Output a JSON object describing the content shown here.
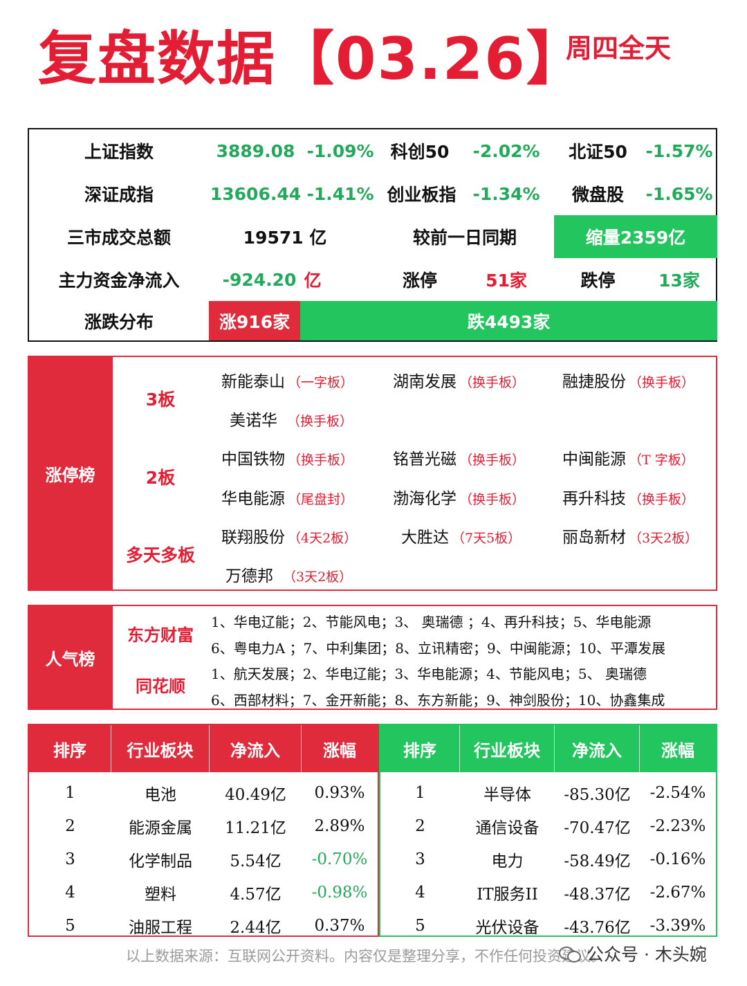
{
  "header": {
    "title": "复盘数据【03.26】",
    "subtitle": "周四全天"
  },
  "indices": {
    "shanghai": {
      "name": "上证指数",
      "value": "3889.08",
      "change": "-1.09%"
    },
    "kechuang": {
      "name": "科创50",
      "change": "-2.02%"
    },
    "beizheng": {
      "name": "北证50",
      "change": "-1.57%"
    },
    "shenzhen": {
      "name": "深证成指",
      "value": "13606.44",
      "change": "-1.41%"
    },
    "chuangye": {
      "name": "创业板指",
      "change": "-1.34%"
    },
    "weipan": {
      "name": "微盘股",
      "change": "-1.65%"
    },
    "turnover": {
      "label": "三市成交总额",
      "value": "19571 亿",
      "compare_label": "较前一日同期",
      "compare_value": "缩量2359亿"
    },
    "mainflow": {
      "label": "主力资金净流入",
      "value": "-924.20",
      "unit": "亿",
      "limit_up_label": "涨停",
      "limit_up_value": "51家",
      "limit_down_label": "跌停",
      "limit_down_value": "13家"
    },
    "distribution": {
      "label": "涨跌分布",
      "up": "涨916家",
      "down": "跌4493家",
      "up_count": 916,
      "down_count": 4493
    }
  },
  "limit_up": {
    "title": "涨停榜",
    "levels": [
      {
        "label": "3板",
        "rows": [
          [
            {
              "name": "新能泰山",
              "tag": "（一字板）"
            },
            {
              "name": "湖南发展",
              "tag": "（换手板）"
            },
            {
              "name": "融捷股份",
              "tag": "（换手板）"
            }
          ],
          [
            {
              "name": "美诺华",
              "tag": "（换手板）"
            }
          ]
        ]
      },
      {
        "label": "2板",
        "rows": [
          [
            {
              "name": "中国铁物",
              "tag": "（换手板）"
            },
            {
              "name": "铭普光磁",
              "tag": "（换手板）"
            },
            {
              "name": "中闽能源",
              "tag": "（T 字板）"
            }
          ],
          [
            {
              "name": "华电能源",
              "tag": "（尾盘封）"
            },
            {
              "name": "渤海化学",
              "tag": "（换手板）"
            },
            {
              "name": "再升科技",
              "tag": "（换手板）"
            }
          ]
        ]
      },
      {
        "label": "多天多板",
        "rows": [
          [
            {
              "name": "联翔股份",
              "tag": "（4天2板）"
            },
            {
              "name": "大胜达",
              "tag": "（7天5板）"
            },
            {
              "name": "丽岛新材",
              "tag": "（3天2板）"
            }
          ],
          [
            {
              "name": "万德邦",
              "tag": "（3天2板）"
            }
          ]
        ]
      }
    ]
  },
  "popularity": {
    "title": "人气榜",
    "sources": [
      {
        "label": "东方财富",
        "lines": [
          "1、华电辽能；2、节能风电；3、 奥瑞德 ；4、再升科技；5、华电能源",
          "6、粤电力A ；7、中利集团；8、立讯精密；9、中闽能源；10、平潭发展"
        ]
      },
      {
        "label": "同花顺",
        "lines": [
          "1、航天发展；2、华电辽能；3、华电能源；4、节能风电；5、 奥瑞德",
          "6、西部材料；7、金开新能；8、东方新能；9、神剑股份；10、协鑫集成"
        ]
      }
    ]
  },
  "sectors": {
    "headers": [
      "排序",
      "行业板块",
      "净流入",
      "涨幅"
    ],
    "inflow": [
      {
        "rank": "1",
        "name": "电池",
        "flow": "40.49亿",
        "change": "0.93%",
        "neg": false
      },
      {
        "rank": "2",
        "name": "能源金属",
        "flow": "11.21亿",
        "change": "2.89%",
        "neg": false
      },
      {
        "rank": "3",
        "name": "化学制品",
        "flow": "5.54亿",
        "change": "-0.70%",
        "neg": true
      },
      {
        "rank": "4",
        "name": "塑料",
        "flow": "4.57亿",
        "change": "-0.98%",
        "neg": true
      },
      {
        "rank": "5",
        "name": "油服工程",
        "flow": "2.44亿",
        "change": "0.37%",
        "neg": false
      }
    ],
    "outflow": [
      {
        "rank": "1",
        "name": "半导体",
        "flow": "-85.30亿",
        "change": "-2.54%"
      },
      {
        "rank": "2",
        "name": "通信设备",
        "flow": "-70.47亿",
        "change": "-2.23%"
      },
      {
        "rank": "3",
        "name": "电力",
        "flow": "-58.49亿",
        "change": "-0.16%"
      },
      {
        "rank": "4",
        "name": "IT服务II",
        "flow": "-48.37亿",
        "change": "-2.67%"
      },
      {
        "rank": "5",
        "name": "光伏设备",
        "flow": "-43.76亿",
        "change": "-3.39%"
      }
    ]
  },
  "footer": {
    "note": "以上数据来源：互联网公开资料。内容仅是整理分享，不作任何投资建议。",
    "watermark": "公众号 · 木头婉",
    "watermark_icon": "wechat-icon"
  },
  "colors": {
    "red": "#e02b3c",
    "green": "#22c55e",
    "text_green": "#23a95b"
  }
}
